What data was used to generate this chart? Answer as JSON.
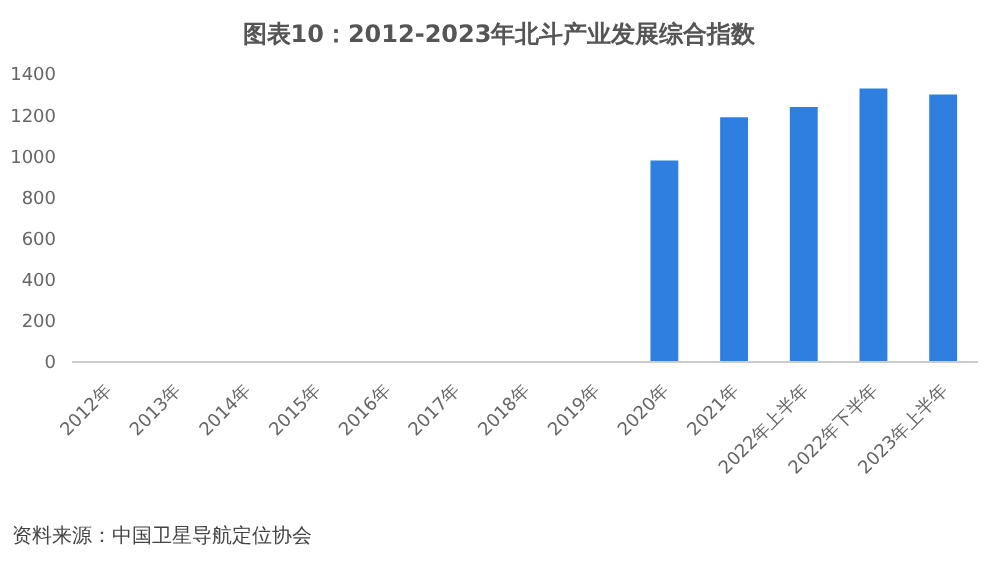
{
  "chart_data": {
    "type": "bar",
    "title": "图表10：2012-2023年北斗产业发展综合指数",
    "categories": [
      "2012年",
      "2013年",
      "2014年",
      "2015年",
      "2016年",
      "2017年",
      "2018年",
      "2019年",
      "2020年",
      "2021年",
      "2022年上半年",
      "2022年下半年",
      "2023年上半年"
    ],
    "values": [
      null,
      null,
      null,
      null,
      null,
      null,
      null,
      null,
      980,
      1190,
      1240,
      1330,
      1300
    ],
    "color": "#2f7fe0",
    "ylim": [
      0,
      1400
    ],
    "yticks": [
      0,
      200,
      400,
      600,
      800,
      1000,
      1200,
      1400
    ],
    "grid": false,
    "annotations": [
      "资料来源：中国卫星导航定位协会"
    ]
  }
}
